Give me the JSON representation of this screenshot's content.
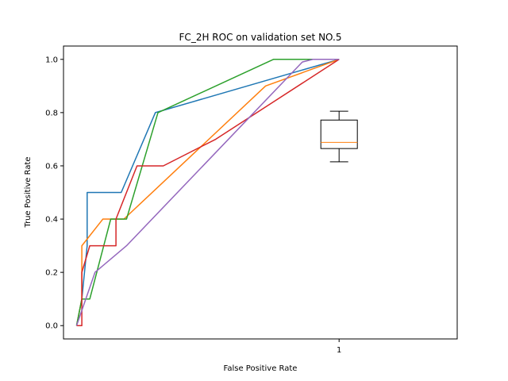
{
  "chart_data": {
    "type": "line",
    "title": "FC_2H ROC on validation set NO.5",
    "xlabel": "False Positive Rate",
    "ylabel": "True Positive Rate",
    "ylim": [
      -0.05,
      1.05
    ],
    "xlim": [
      -0.05,
      1.45
    ],
    "yticks": [
      0.0,
      0.2,
      0.4,
      0.6,
      0.8,
      1.0
    ],
    "ytick_labels": [
      "0.0",
      "0.2",
      "0.4",
      "0.6",
      "0.8",
      "1.0"
    ],
    "xticks": [
      1.0
    ],
    "xtick_labels": [
      "1"
    ],
    "grid": false,
    "colors": [
      "#1f77b4",
      "#ff7f0e",
      "#2ca02c",
      "#d62728",
      "#9467bd"
    ],
    "series": [
      {
        "x": [
          0.0,
          0.02,
          0.04,
          0.04,
          0.17,
          0.3,
          1.0
        ],
        "y": [
          0.0,
          0.1,
          0.3,
          0.5,
          0.5,
          0.8,
          1.0
        ]
      },
      {
        "x": [
          0.0,
          0.02,
          0.02,
          0.1,
          0.18,
          0.72,
          1.0
        ],
        "y": [
          0.0,
          0.1,
          0.3,
          0.4,
          0.4,
          0.9,
          1.0
        ]
      },
      {
        "x": [
          0.0,
          0.02,
          0.05,
          0.13,
          0.19,
          0.31,
          0.75,
          1.0
        ],
        "y": [
          0.0,
          0.1,
          0.1,
          0.4,
          0.4,
          0.8,
          1.0,
          1.0
        ]
      },
      {
        "x": [
          0.0,
          0.02,
          0.02,
          0.05,
          0.15,
          0.15,
          0.23,
          0.33,
          0.53,
          1.0
        ],
        "y": [
          0.0,
          0.0,
          0.2,
          0.3,
          0.3,
          0.4,
          0.6,
          0.6,
          0.7,
          1.0
        ]
      },
      {
        "x": [
          0.0,
          0.07,
          0.19,
          0.86,
          0.9,
          1.0
        ],
        "y": [
          0.0,
          0.2,
          0.3,
          0.99,
          1.0,
          1.0
        ]
      }
    ],
    "boxplot": {
      "x": 1.0,
      "whisker_low": 0.615,
      "q1": 0.665,
      "median": 0.688,
      "q3": 0.772,
      "whisker_high": 0.805,
      "median_color": "#ff7f0e"
    }
  }
}
